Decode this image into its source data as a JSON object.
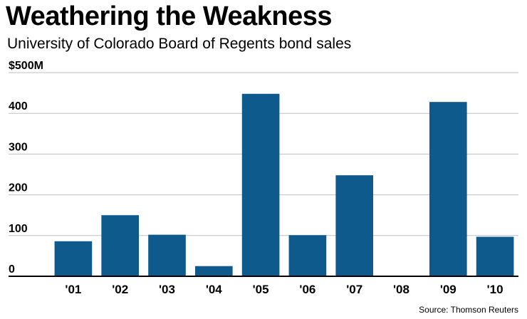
{
  "chart_data": {
    "type": "bar",
    "title": "Weathering the Weakness",
    "subtitle": "University of Colorado Board of Regents bond sales",
    "source": "Source: Thomson Reuters",
    "categories": [
      "'01",
      "'02",
      "'03",
      "'04",
      "'05",
      "'06",
      "'07",
      "'08",
      "'09",
      "'10"
    ],
    "values": [
      86,
      150,
      102,
      25,
      448,
      101,
      248,
      0,
      428,
      97
    ],
    "ylim": [
      0,
      500
    ],
    "yticks": [
      0,
      100,
      200,
      300,
      400,
      500
    ],
    "ytick_labels": [
      "0",
      "100",
      "200",
      "300",
      "400",
      "$500M"
    ],
    "grid": true,
    "colors": {
      "bar": "#0e5a8c",
      "grid": "#bfbfbf",
      "axis": "#000000"
    }
  }
}
